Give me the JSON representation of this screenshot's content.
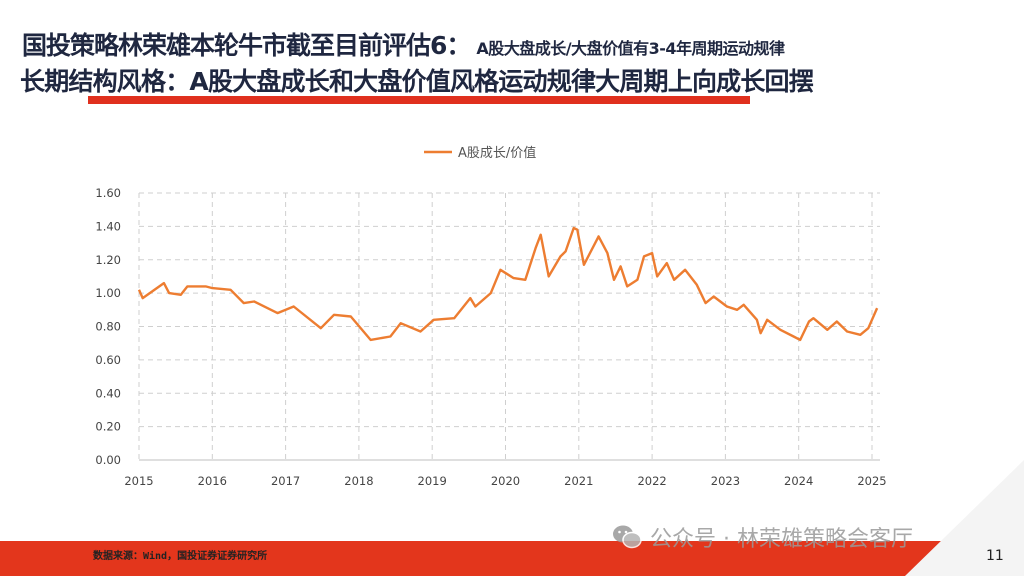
{
  "header": {
    "title_main": "国投策略林荣雄本轮牛市截至目前评估6：",
    "title_sub": "A股大盘成长/大盘价值有3-4年周期运动规律",
    "subtitle": "长期结构风格：A股大盘成长和大盘价值风格运动规律大周期上向成长回摆",
    "accent_color": "#e0301e"
  },
  "footer": {
    "source": "数据来源：Wind，国投证券证券研究所",
    "page_number": "11",
    "watermark": "公众号 · 林荣雄策略会客厅",
    "watermark_icon": "wechat-icon"
  },
  "chart_data": {
    "type": "line",
    "title": "",
    "xlabel": "",
    "ylabel": "",
    "legend_position": "top-center",
    "grid": "dashed",
    "xlim": [
      2015,
      2025
    ],
    "ylim": [
      0,
      1.6
    ],
    "x_ticks": [
      "2015",
      "2016",
      "2017",
      "2018",
      "2019",
      "2020",
      "2021",
      "2022",
      "2023",
      "2024",
      "2025"
    ],
    "y_ticks": [
      "0.00",
      "0.20",
      "0.40",
      "0.60",
      "0.80",
      "1.00",
      "1.20",
      "1.40",
      "1.60"
    ],
    "series": [
      {
        "name": "A股成长/价值",
        "color": "#ED7D31",
        "x": [
          2015.0,
          2015.05,
          2015.34,
          2015.41,
          2015.57,
          2015.66,
          2015.91,
          2016.0,
          2016.25,
          2016.43,
          2016.57,
          2016.89,
          2017.11,
          2017.48,
          2017.66,
          2017.89,
          2018.16,
          2018.43,
          2018.57,
          2018.84,
          2019.02,
          2019.3,
          2019.52,
          2019.59,
          2019.8,
          2019.93,
          2020.11,
          2020.27,
          2020.41,
          2020.48,
          2020.59,
          2020.75,
          2020.82,
          2020.93,
          2020.98,
          2021.07,
          2021.27,
          2021.39,
          2021.48,
          2021.57,
          2021.66,
          2021.8,
          2021.89,
          2022.0,
          2022.07,
          2022.2,
          2022.3,
          2022.45,
          2022.61,
          2022.73,
          2022.84,
          2023.02,
          2023.16,
          2023.25,
          2023.43,
          2023.48,
          2023.57,
          2023.75,
          2023.93,
          2024.02,
          2024.14,
          2024.2,
          2024.39,
          2024.52,
          2024.66,
          2024.84,
          2024.95,
          2025.07
        ],
        "y": [
          1.02,
          0.97,
          1.06,
          1.0,
          0.99,
          1.04,
          1.04,
          1.03,
          1.02,
          0.94,
          0.95,
          0.88,
          0.92,
          0.79,
          0.87,
          0.86,
          0.72,
          0.74,
          0.82,
          0.77,
          0.84,
          0.85,
          0.97,
          0.92,
          1.0,
          1.14,
          1.09,
          1.08,
          1.27,
          1.35,
          1.1,
          1.22,
          1.25,
          1.39,
          1.38,
          1.17,
          1.34,
          1.24,
          1.08,
          1.16,
          1.04,
          1.08,
          1.22,
          1.24,
          1.1,
          1.18,
          1.08,
          1.14,
          1.05,
          0.94,
          0.98,
          0.92,
          0.9,
          0.93,
          0.84,
          0.76,
          0.84,
          0.78,
          0.74,
          0.72,
          0.83,
          0.85,
          0.78,
          0.83,
          0.77,
          0.75,
          0.79,
          0.91
        ]
      }
    ]
  }
}
